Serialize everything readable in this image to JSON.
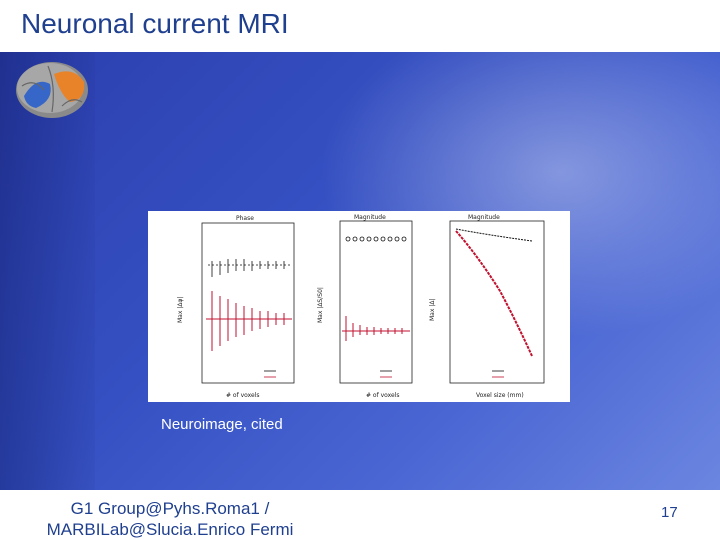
{
  "slide": {
    "title": "Neuronal current MRI",
    "caption": "Neuroimage, cited",
    "footer": "G1 Group@Pyhs.Roma1 / MARBILab@Slucia.Enrico Fermi",
    "page_number": "17"
  },
  "figure": {
    "panels": [
      {
        "title": "Phase",
        "ylabel": "Max |Δφ|",
        "xlabel": "# of voxels"
      },
      {
        "title": "Magnitude",
        "ylabel": "Max |ΔS/S0|",
        "xlabel": "# of voxels"
      },
      {
        "title": "Magnitude",
        "ylabel": "Max |Δ|",
        "xlabel": "Voxel size (mm)"
      }
    ]
  },
  "colors": {
    "title": "#1f3f8f",
    "background": "#3550c2",
    "series_black": "#111111",
    "series_red": "#c0122f"
  }
}
